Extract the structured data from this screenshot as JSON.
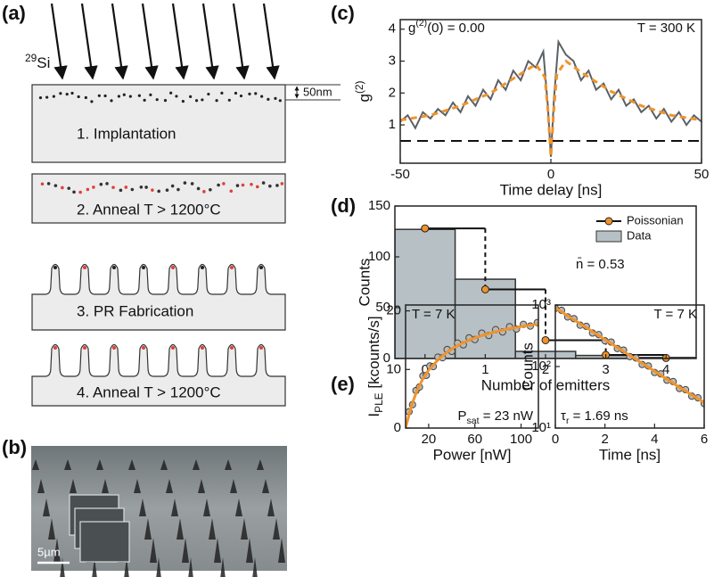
{
  "panel_labels": [
    "(a)",
    "(b)",
    "(c)",
    "(d)",
    "(e)"
  ],
  "diagram": {
    "ion_label": {
      "sup": "29",
      "rest": "Si"
    },
    "depth_label": "50nm",
    "steps": [
      "1. Implantation",
      "2. Anneal T > 1200°C",
      "3. PR Fabrication",
      "4. Anneal T > 1200°C"
    ]
  },
  "sem": {
    "scale_label": "5µm"
  },
  "chart_data": [
    {
      "type": "line",
      "xlabel": "Time delay [ns]",
      "ylabel": {
        "base": "g",
        "sup": "(2)"
      },
      "annotations": [
        {
          "base": "g",
          "sup": "(2)",
          "rest": "(0) = 0.00"
        },
        "T = 300 K"
      ],
      "xlim": [
        -50,
        50
      ],
      "xticks": [
        -50,
        0,
        50
      ],
      "ylim": [
        -0.2,
        4.3
      ],
      "yticks": [
        1,
        2,
        3,
        4
      ],
      "hline": 0.5,
      "series": [
        {
          "color": "#5a6166",
          "x": [
            -50,
            -47.5,
            -45,
            -42.5,
            -40,
            -37.5,
            -35,
            -32.5,
            -30,
            -27.5,
            -25,
            -22.5,
            -20,
            -17.5,
            -15,
            -12.5,
            -10,
            -7.5,
            -5,
            -2.5,
            -1,
            0,
            1,
            2.5,
            5,
            7.5,
            10,
            12.5,
            15,
            17.5,
            20,
            22.5,
            25,
            27.5,
            30,
            32.5,
            35,
            37.5,
            40,
            42.5,
            45,
            47.5,
            50
          ],
          "values": [
            1.1,
            1.3,
            0.9,
            1.4,
            1.2,
            1.5,
            1.3,
            1.7,
            1.4,
            1.9,
            1.6,
            2.1,
            1.8,
            2.4,
            2.1,
            2.7,
            2.4,
            3.0,
            2.8,
            3.3,
            1.6,
            0.0,
            1.8,
            3.6,
            3.2,
            3.0,
            2.4,
            2.7,
            2.1,
            2.3,
            1.8,
            2.1,
            1.6,
            1.8,
            1.4,
            1.6,
            1.2,
            1.5,
            1.1,
            1.4,
            1.0,
            1.3,
            1.1
          ]
        },
        {
          "color": "#f0932b",
          "dash": true,
          "x": [
            -50,
            -40,
            -30,
            -20,
            -10,
            -5,
            -2,
            -1,
            0,
            1,
            2,
            5,
            10,
            20,
            30,
            40,
            50
          ],
          "values": [
            1.15,
            1.3,
            1.6,
            2.0,
            2.6,
            2.9,
            2.5,
            1.5,
            0,
            1.5,
            2.6,
            3.0,
            2.65,
            2.05,
            1.6,
            1.3,
            1.15
          ]
        }
      ]
    },
    {
      "type": "bar",
      "xlabel": "Number of emitters",
      "ylabel": "Counts",
      "annotations": [
        "n̄ = 0.53"
      ],
      "x": [
        0,
        1,
        2,
        3,
        4
      ],
      "xlim": [
        -0.5,
        4.5
      ],
      "xticks": [
        0,
        1,
        2,
        3,
        4
      ],
      "ylim": [
        0,
        150
      ],
      "yticks": [
        0,
        50,
        100,
        150
      ],
      "legend": "upper right",
      "series": [
        {
          "name": "Poissonian",
          "color": "#f0932b",
          "style": "step",
          "values": [
            128,
            68,
            18,
            3.5,
            0.5
          ]
        },
        {
          "name": "Data",
          "color": "#b7c1c5",
          "style": "bars",
          "values": [
            127,
            78,
            7,
            3,
            1
          ]
        }
      ]
    },
    {
      "type": "scatter",
      "xlabel": "Power [nW]",
      "ylabel": {
        "base": "I",
        "sub": "PLE",
        "rest": " [kcounts/s]"
      },
      "annotations": [
        "T = 7 K",
        {
          "base": "P",
          "sub": "sat",
          "rest": " = 23 nW"
        }
      ],
      "xlim": [
        0,
        115
      ],
      "xticks": [
        20,
        60,
        100
      ],
      "ylim": [
        0,
        21
      ],
      "yticks": [
        0,
        10,
        20
      ],
      "series": [
        {
          "color": "#b9b9b9",
          "style": "markers",
          "x": [
            3,
            6,
            9,
            12,
            15,
            18,
            21,
            24,
            28,
            32,
            36,
            40,
            45,
            50,
            55,
            60,
            66,
            72,
            78,
            84,
            90,
            96,
            102,
            108,
            114
          ],
          "values": [
            2.8,
            4.0,
            6.4,
            7.0,
            8.9,
            9.0,
            10.6,
            10.5,
            12.1,
            12.0,
            13.4,
            13.1,
            14.5,
            14.2,
            15.4,
            15.1,
            16.2,
            15.8,
            16.8,
            16.4,
            17.3,
            16.9,
            17.7,
            17.4,
            18.0
          ]
        },
        {
          "color": "#f0932b",
          "style": "line",
          "x": [
            0,
            5,
            10,
            15,
            20,
            30,
            40,
            50,
            60,
            70,
            80,
            90,
            100,
            110,
            115
          ],
          "values": [
            0,
            3.8,
            6.45,
            8.41,
            9.91,
            12.06,
            13.52,
            14.59,
            15.4,
            16.03,
            16.54,
            16.96,
            17.32,
            17.62,
            17.76
          ]
        }
      ]
    },
    {
      "type": "scatter",
      "xlabel": "Time [ns]",
      "ylabel": "Counts",
      "annotations": [
        "T = 7 K",
        {
          "base": "τ",
          "sub": "r",
          "rest": " = 1.69 ns"
        }
      ],
      "log_y": true,
      "xlim": [
        0,
        6
      ],
      "xticks": [
        0,
        2,
        4,
        6
      ],
      "ylim": [
        10,
        1000
      ],
      "yticks": [
        {
          "value": 10,
          "label": "10¹"
        },
        {
          "value": 100,
          "label": "10²"
        },
        {
          "value": 1000,
          "label": "10³"
        }
      ],
      "series": [
        {
          "color": "#b9b9b9",
          "style": "markers",
          "x": [
            0,
            0.25,
            0.5,
            0.75,
            1,
            1.25,
            1.5,
            1.75,
            2,
            2.25,
            2.5,
            2.75,
            3,
            3.25,
            3.5,
            3.75,
            4,
            4.25,
            4.5,
            4.75,
            5,
            5.25,
            5.5,
            5.75,
            6
          ],
          "values": [
            880,
            820,
            640,
            600,
            470,
            450,
            350,
            330,
            262,
            250,
            196,
            185,
            145,
            138,
            108,
            102,
            80,
            76,
            60,
            57,
            44,
            42,
            33,
            31,
            25
          ]
        },
        {
          "color": "#f0932b",
          "style": "line",
          "x": [
            0,
            1,
            2,
            3,
            4,
            5,
            6
          ],
          "values": [
            900,
            497,
            274,
            152,
            84,
            46,
            26
          ]
        }
      ]
    }
  ]
}
